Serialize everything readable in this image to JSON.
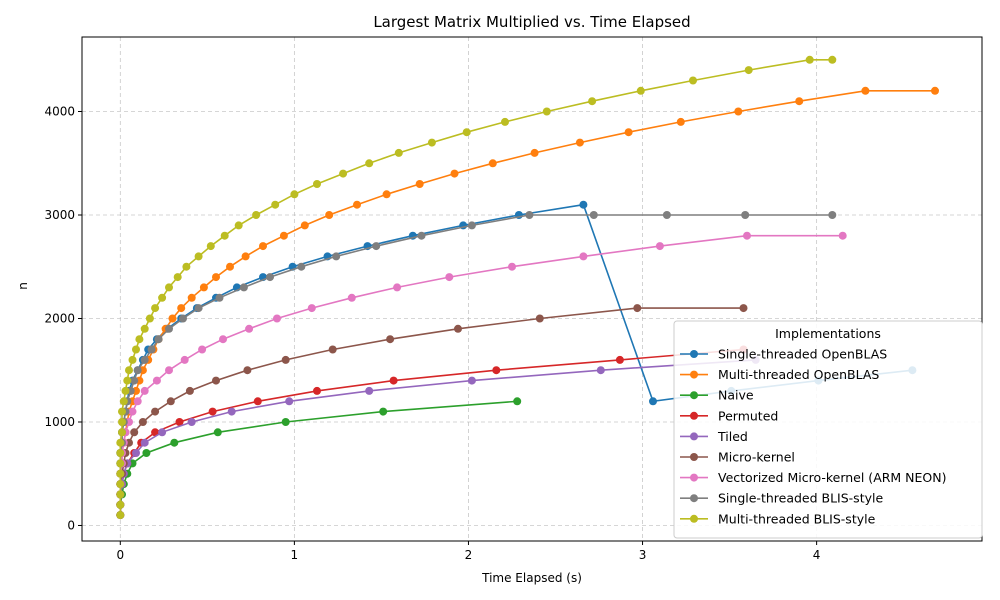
{
  "chart_data": {
    "type": "line",
    "title": "Largest Matrix Multiplied vs. Time Elapsed",
    "xlabel": "Time Elapsed (s)",
    "ylabel": "n",
    "xlim": [
      -0.22,
      4.95
    ],
    "ylim": [
      -150,
      4720
    ],
    "xticks": [
      0,
      1,
      2,
      3,
      4
    ],
    "yticks": [
      0,
      1000,
      2000,
      3000,
      4000
    ],
    "grid": true,
    "legend": {
      "title": "Implementations",
      "placement": "lower-right"
    },
    "series": [
      {
        "name": "Single-threaded OpenBLAS",
        "color": "#1f77b4",
        "x": [
          0,
          0,
          0,
          0,
          0,
          0,
          0,
          0.01,
          0.01,
          0.02,
          0.03,
          0.04,
          0.05,
          0.07,
          0.1,
          0.13,
          0.16,
          0.21,
          0.27,
          0.35,
          0.44,
          0.55,
          0.67,
          0.82,
          0.99,
          1.19,
          1.42,
          1.68,
          1.97,
          2.29,
          2.66,
          3.06,
          3.51,
          4.01,
          4.55
        ],
        "y": [
          100,
          200,
          300,
          400,
          500,
          600,
          700,
          800,
          900,
          1000,
          1100,
          1200,
          1300,
          1400,
          1500,
          1600,
          1700,
          1800,
          1900,
          2000,
          2100,
          2200,
          2300,
          2400,
          2500,
          2600,
          2700,
          2800,
          2900,
          3000,
          3100,
          1200,
          1300,
          1400,
          1500
        ]
      },
      {
        "name": "Multi-threaded OpenBLAS",
        "color": "#ff7f0e",
        "x": [
          0,
          0,
          0,
          0,
          0,
          0.01,
          0.01,
          0.02,
          0.03,
          0.04,
          0.05,
          0.07,
          0.09,
          0.11,
          0.13,
          0.16,
          0.19,
          0.22,
          0.26,
          0.3,
          0.35,
          0.41,
          0.48,
          0.55,
          0.63,
          0.72,
          0.82,
          0.94,
          1.06,
          1.2,
          1.36,
          1.53,
          1.72,
          1.92,
          2.14,
          2.38,
          2.64,
          2.92,
          3.22,
          3.55,
          3.9,
          4.28,
          4.68
        ],
        "y": [
          100,
          200,
          300,
          400,
          500,
          600,
          700,
          800,
          900,
          1000,
          1100,
          1200,
          1300,
          1400,
          1500,
          1600,
          1700,
          1800,
          1900,
          2000,
          2100,
          2200,
          2300,
          2400,
          2500,
          2600,
          2700,
          2800,
          2900,
          3000,
          3100,
          3200,
          3300,
          3400,
          3500,
          3600,
          3700,
          3800,
          3900,
          4000,
          4100,
          4200,
          4200
        ]
      },
      {
        "name": "Naive",
        "color": "#2ca02c",
        "x": [
          0,
          0,
          0.01,
          0.02,
          0.04,
          0.07,
          0.15,
          0.31,
          0.56,
          0.95,
          1.51,
          2.28
        ],
        "y": [
          100,
          200,
          300,
          400,
          500,
          600,
          700,
          800,
          900,
          1000,
          1100,
          1200
        ]
      },
      {
        "name": "Permuted",
        "color": "#d62728",
        "x": [
          0,
          0,
          0,
          0.01,
          0.02,
          0.04,
          0.08,
          0.12,
          0.2,
          0.34,
          0.53,
          0.79,
          1.13,
          1.57,
          2.16,
          2.87,
          3.58
        ],
        "y": [
          100,
          200,
          300,
          400,
          500,
          600,
          700,
          800,
          900,
          1000,
          1100,
          1200,
          1300,
          1400,
          1500,
          1600,
          1700
        ]
      },
      {
        "name": "Tiled",
        "color": "#9467bd",
        "x": [
          0,
          0,
          0,
          0.01,
          0.02,
          0.04,
          0.09,
          0.14,
          0.24,
          0.41,
          0.64,
          0.97,
          1.43,
          2.02,
          2.76,
          3.65
        ],
        "y": [
          100,
          200,
          300,
          400,
          500,
          600,
          700,
          800,
          900,
          1000,
          1100,
          1200,
          1300,
          1400,
          1500,
          1600
        ]
      },
      {
        "name": "Micro-kernel",
        "color": "#8c564b",
        "x": [
          0,
          0,
          0,
          0,
          0.01,
          0.02,
          0.03,
          0.05,
          0.08,
          0.13,
          0.2,
          0.29,
          0.4,
          0.55,
          0.73,
          0.95,
          1.22,
          1.55,
          1.94,
          2.41,
          2.97,
          3.58
        ],
        "y": [
          100,
          200,
          300,
          400,
          500,
          600,
          700,
          800,
          900,
          1000,
          1100,
          1200,
          1300,
          1400,
          1500,
          1600,
          1700,
          1800,
          1900,
          2000,
          2100,
          2100
        ]
      },
      {
        "name": "Vectorized Micro-kernel (ARM NEON)",
        "color": "#e377c2",
        "x": [
          0,
          0,
          0,
          0,
          0,
          0.01,
          0.01,
          0.02,
          0.03,
          0.05,
          0.07,
          0.1,
          0.14,
          0.21,
          0.28,
          0.37,
          0.47,
          0.59,
          0.74,
          0.9,
          1.1,
          1.33,
          1.59,
          1.89,
          2.25,
          2.66,
          3.1,
          3.6,
          4.15
        ],
        "y": [
          100,
          200,
          300,
          400,
          500,
          600,
          700,
          800,
          900,
          1000,
          1100,
          1200,
          1300,
          1400,
          1500,
          1600,
          1700,
          1800,
          1900,
          2000,
          2100,
          2200,
          2300,
          2400,
          2500,
          2600,
          2700,
          2800,
          2800
        ]
      },
      {
        "name": "Single-threaded BLIS-style",
        "color": "#7f7f7f",
        "x": [
          0,
          0,
          0,
          0,
          0,
          0,
          0,
          0.01,
          0.01,
          0.02,
          0.03,
          0.04,
          0.06,
          0.08,
          0.1,
          0.14,
          0.18,
          0.22,
          0.28,
          0.36,
          0.45,
          0.57,
          0.71,
          0.86,
          1.04,
          1.24,
          1.47,
          1.73,
          2.02,
          2.35,
          2.72,
          3.14,
          3.59,
          4.09
        ],
        "y": [
          100,
          200,
          300,
          400,
          500,
          600,
          700,
          800,
          900,
          1000,
          1100,
          1200,
          1300,
          1400,
          1500,
          1600,
          1700,
          1800,
          1900,
          2000,
          2100,
          2200,
          2300,
          2400,
          2500,
          2600,
          2700,
          2800,
          2900,
          3000,
          3000,
          3000,
          3000,
          3000
        ]
      },
      {
        "name": "Multi-threaded BLIS-style",
        "color": "#bcbd22",
        "x": [
          0,
          0,
          0,
          0,
          0,
          0,
          0,
          0,
          0.01,
          0.01,
          0.01,
          0.02,
          0.03,
          0.04,
          0.05,
          0.07,
          0.09,
          0.11,
          0.14,
          0.17,
          0.2,
          0.24,
          0.28,
          0.33,
          0.38,
          0.45,
          0.52,
          0.6,
          0.68,
          0.78,
          0.89,
          1.0,
          1.13,
          1.28,
          1.43,
          1.6,
          1.79,
          1.99,
          2.21,
          2.45,
          2.71,
          2.99,
          3.29,
          3.61,
          3.96,
          4.09
        ],
        "y": [
          100,
          200,
          300,
          400,
          500,
          600,
          700,
          800,
          900,
          1000,
          1100,
          1200,
          1300,
          1400,
          1500,
          1600,
          1700,
          1800,
          1900,
          2000,
          2100,
          2200,
          2300,
          2400,
          2500,
          2600,
          2700,
          2800,
          2900,
          3000,
          3100,
          3200,
          3300,
          3400,
          3500,
          3600,
          3700,
          3800,
          3900,
          4000,
          4100,
          4200,
          4300,
          4400,
          4500,
          4500
        ]
      }
    ]
  }
}
